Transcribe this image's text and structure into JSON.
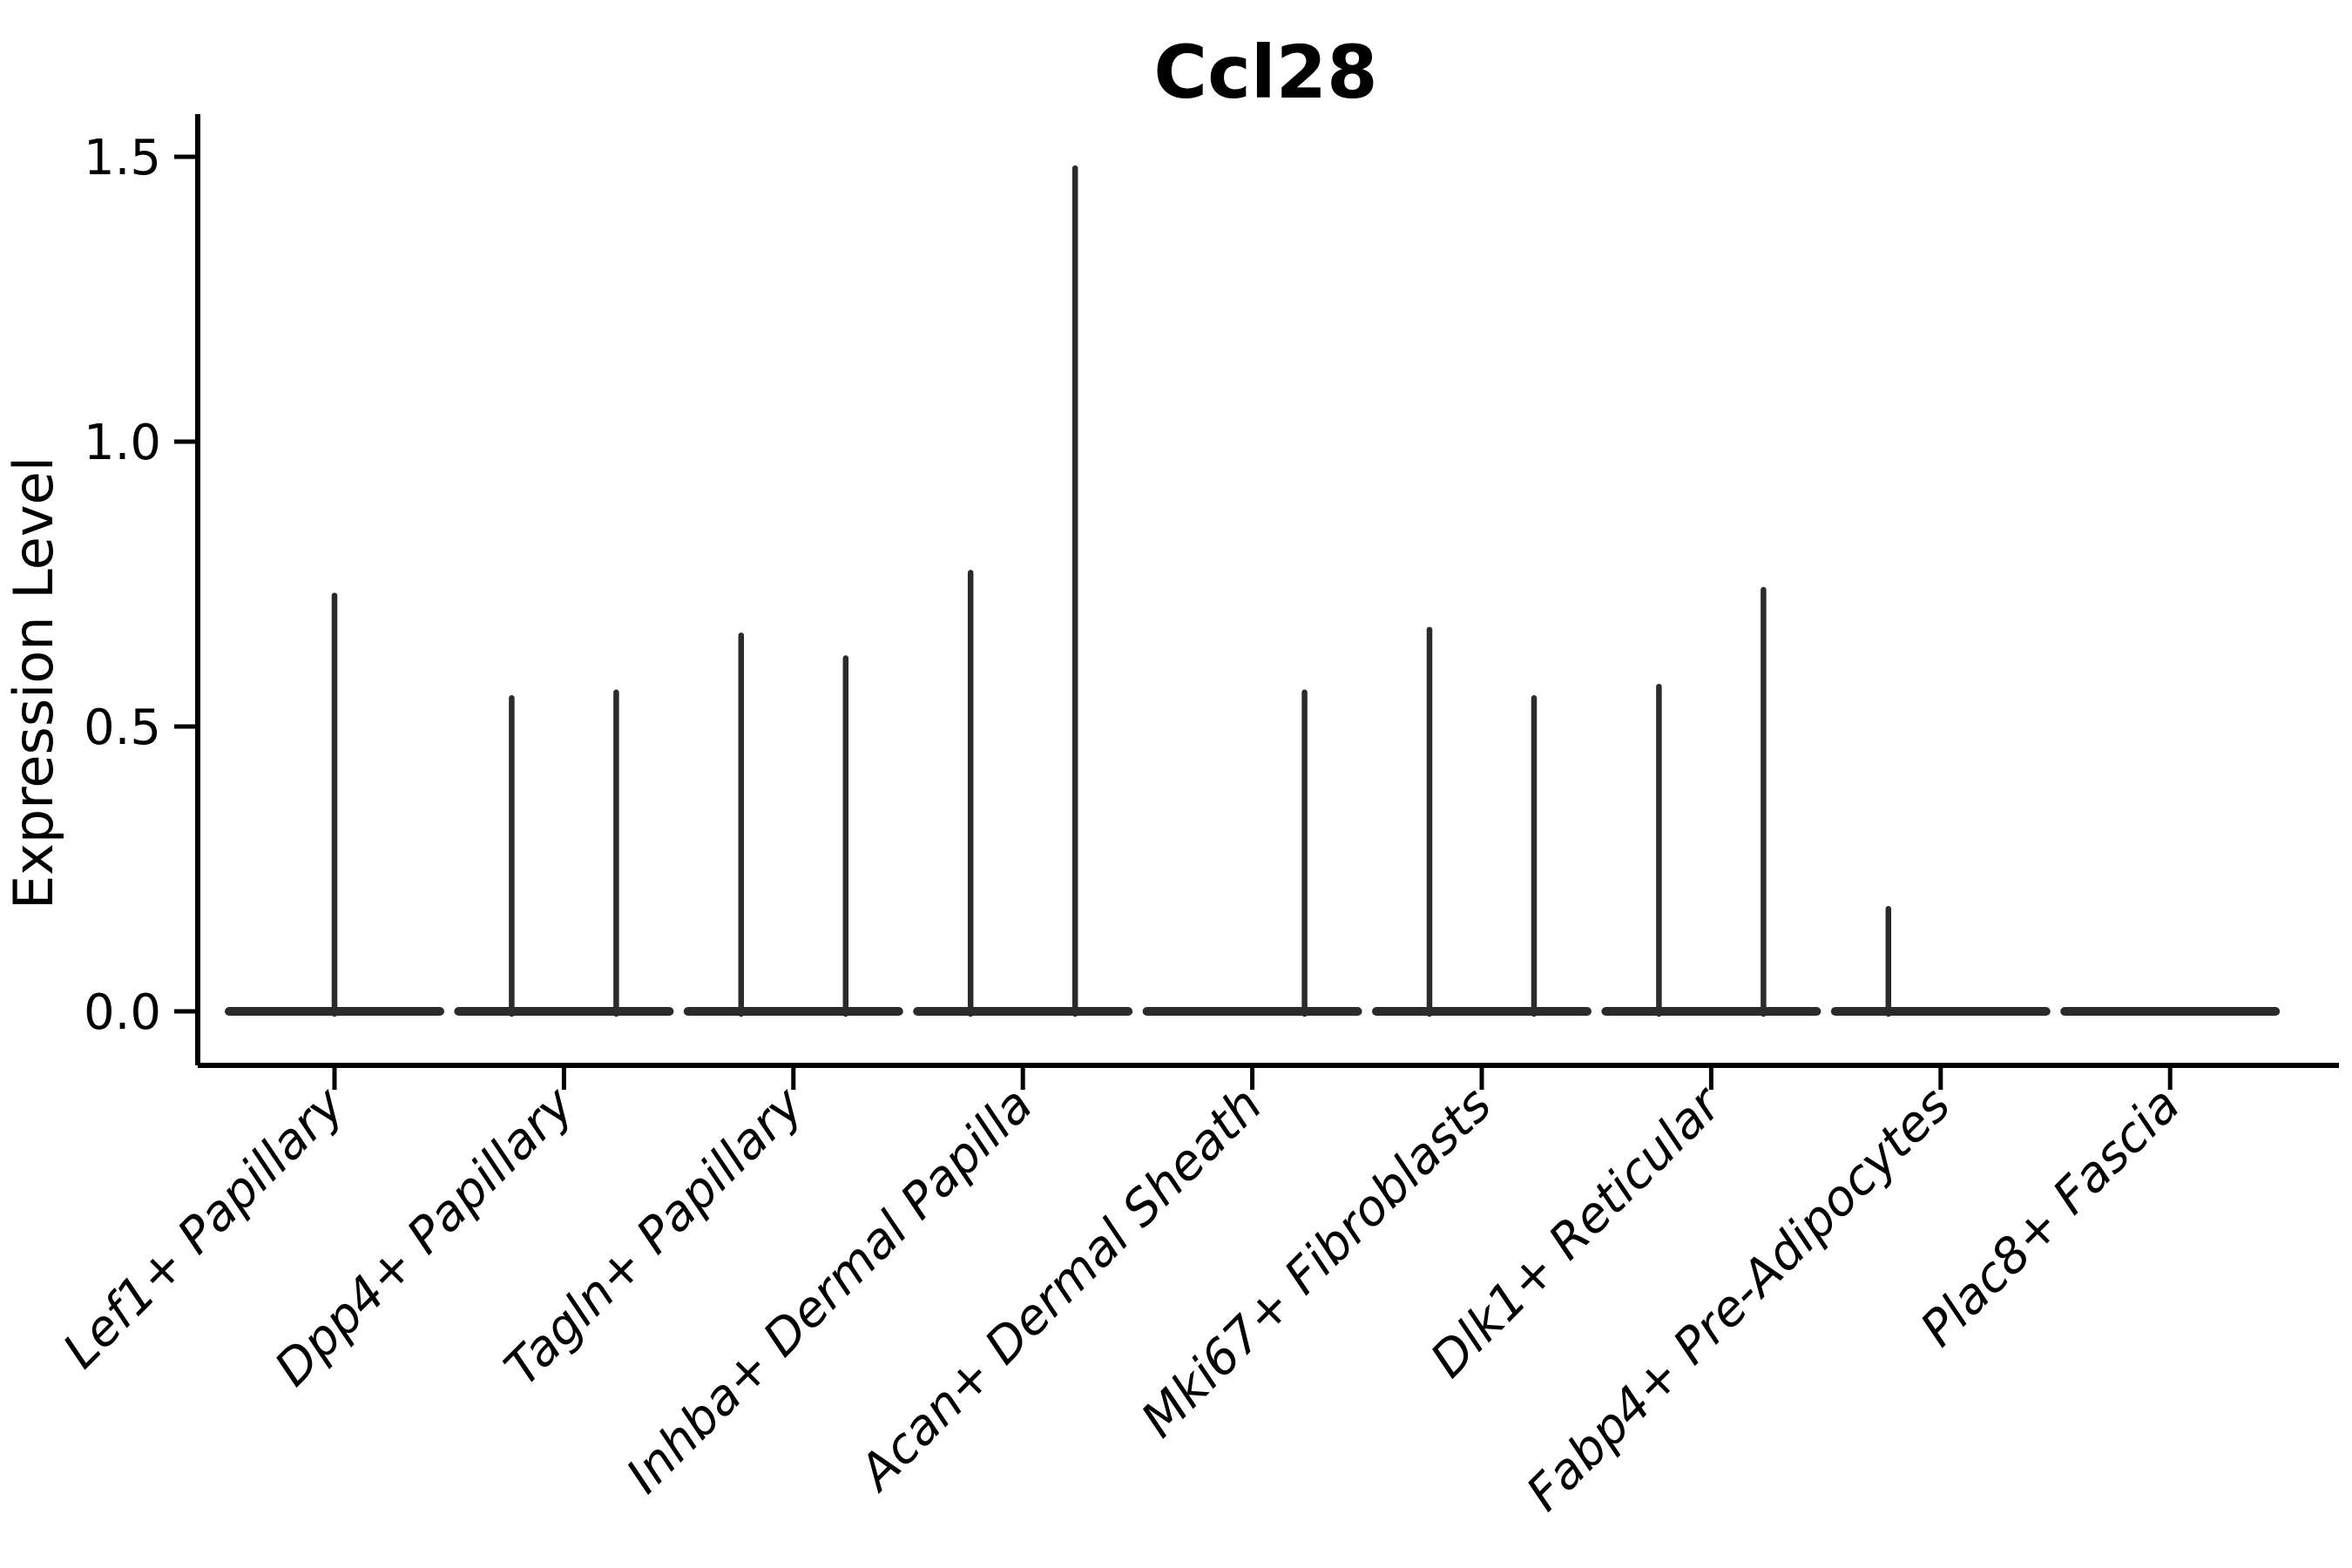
{
  "figure": {
    "title": "Ccl28",
    "background_color": "#ffffff"
  },
  "chart_data": {
    "type": "violin",
    "title": "Ccl28",
    "xlabel": "",
    "ylabel": "Expression Level",
    "ylim": [
      -0.1,
      1.58
    ],
    "yticks": [
      0.0,
      0.5,
      1.0,
      1.5
    ],
    "ytick_labels": [
      "0.0",
      "0.5",
      "1.0",
      "1.5"
    ],
    "grid": false,
    "legend": null,
    "x_tick_label_rotation_deg": 45,
    "x_tick_label_style": "italic",
    "categories": [
      "Lef1+ Papillary",
      "Dpp4+ Papillary",
      "Tagln+ Papillary",
      "Inhba+ Dermal Papilla",
      "Acan+ Dermal Sheath",
      "Mki67+ Fibroblasts",
      "Dlk1+ Reticular",
      "Fabp4+ Pre-Adipocytes",
      "Plac8+ Fascia"
    ],
    "series": [
      {
        "category": "Lef1+ Papillary",
        "violins": [
          {
            "position": "center",
            "max": 0.73
          }
        ]
      },
      {
        "category": "Dpp4+ Papillary",
        "violins": [
          {
            "position": "left",
            "max": 0.55
          },
          {
            "position": "right",
            "max": 0.56
          }
        ]
      },
      {
        "category": "Tagln+ Papillary",
        "violins": [
          {
            "position": "left",
            "max": 0.66
          },
          {
            "position": "right",
            "max": 0.62
          }
        ]
      },
      {
        "category": "Inhba+ Dermal Papilla",
        "violins": [
          {
            "position": "left",
            "max": 0.77
          },
          {
            "position": "right",
            "max": 1.48
          }
        ]
      },
      {
        "category": "Acan+ Dermal Sheath",
        "violins": [
          {
            "position": "left",
            "max": 0.0
          },
          {
            "position": "right",
            "max": 0.56
          }
        ]
      },
      {
        "category": "Mki67+ Fibroblasts",
        "violins": [
          {
            "position": "left",
            "max": 0.67
          },
          {
            "position": "right",
            "max": 0.55
          }
        ]
      },
      {
        "category": "Dlk1+ Reticular",
        "violins": [
          {
            "position": "left",
            "max": 0.57
          },
          {
            "position": "right",
            "max": 0.74
          }
        ]
      },
      {
        "category": "Fabp4+ Pre-Adipocytes",
        "violins": [
          {
            "position": "left",
            "max": 0.18
          },
          {
            "position": "right",
            "max": 0.0
          }
        ]
      },
      {
        "category": "Plac8+ Fascia",
        "violins": [
          {
            "position": "left",
            "max": 0.0
          },
          {
            "position": "right",
            "max": 0.0
          }
        ]
      }
    ],
    "colors": {
      "violin_line": "#2b2b2b",
      "axis": "#000000",
      "text": "#000000",
      "background": "#ffffff"
    }
  }
}
